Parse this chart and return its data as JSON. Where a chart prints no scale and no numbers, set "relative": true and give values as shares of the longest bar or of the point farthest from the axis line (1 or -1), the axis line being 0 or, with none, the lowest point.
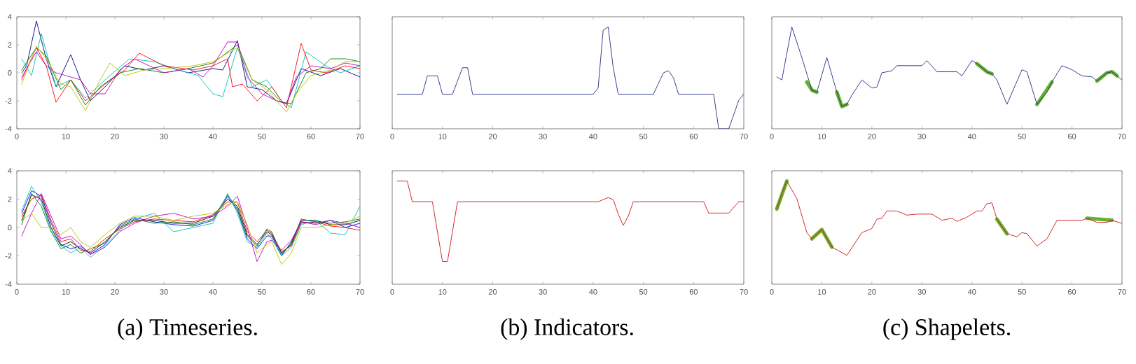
{
  "chart_data": [
    {
      "type": "line",
      "xlim": [
        0,
        70
      ],
      "xticks": [
        0,
        10,
        20,
        30,
        40,
        50,
        60,
        70
      ],
      "ylim": [
        -4,
        4
      ],
      "yticks": [
        -4,
        -2,
        0,
        2,
        4
      ],
      "series": [
        {
          "color": "#000080",
          "x": [
            1,
            2,
            4,
            6,
            8,
            11,
            13,
            15,
            18,
            22,
            26,
            30,
            35,
            40,
            42,
            45,
            47,
            50,
            53,
            55,
            58,
            62,
            66,
            70
          ],
          "values": [
            0,
            0.5,
            3.7,
            1,
            -1,
            1.3,
            -0.5,
            -2,
            -1,
            0.5,
            0.2,
            0.5,
            0,
            0.3,
            0.2,
            2.3,
            -1,
            -1.2,
            -2,
            -2.2,
            0.3,
            -0.2,
            0.3,
            -0.3
          ]
        },
        {
          "color": "#00bfbf",
          "x": [
            1,
            3,
            5,
            8,
            11,
            14,
            18,
            23,
            28,
            33,
            37,
            40,
            42,
            45,
            48,
            51,
            54,
            56,
            59,
            63,
            66,
            70
          ],
          "values": [
            1,
            -0.2,
            2.8,
            -1,
            -0.5,
            -1.8,
            -0.5,
            1,
            0.8,
            0.2,
            -0.2,
            -1.5,
            -1.7,
            1.8,
            -1,
            -0.5,
            -2,
            -2.5,
            1.5,
            0.5,
            0,
            0.5
          ]
        },
        {
          "color": "#ff0000",
          "x": [
            1,
            4,
            6,
            8,
            11,
            14,
            18,
            22,
            25,
            30,
            36,
            40,
            43,
            44,
            46,
            49,
            52,
            55,
            58,
            60,
            63,
            67,
            70
          ],
          "values": [
            -0.5,
            1.8,
            0.5,
            -2.1,
            -0.5,
            -2,
            -0.8,
            0.2,
            1.4,
            0.5,
            0.2,
            0.5,
            1,
            -1,
            -0.8,
            -2,
            -1,
            -2.5,
            2.1,
            0.2,
            0,
            0.5,
            0.3
          ]
        },
        {
          "color": "#008000",
          "x": [
            1,
            4,
            6,
            9,
            11,
            14,
            17,
            21,
            25,
            30,
            35,
            40,
            45,
            48,
            51,
            54,
            56,
            59,
            62,
            64,
            67,
            70
          ],
          "values": [
            0.2,
            1.8,
            1.2,
            -1.2,
            -0.5,
            -2.3,
            -1,
            0,
            0.3,
            0,
            0.3,
            0.7,
            2,
            -0.5,
            -1,
            -2.1,
            -2.2,
            0,
            0.3,
            1,
            1,
            0.8
          ]
        },
        {
          "color": "#bf00bf",
          "x": [
            1,
            4,
            6,
            8,
            11,
            13,
            15,
            18,
            21,
            24,
            30,
            35,
            38,
            40,
            43,
            45,
            47,
            50,
            53,
            55,
            57,
            60,
            64,
            67,
            70
          ],
          "values": [
            -0.3,
            1.5,
            0.5,
            0,
            -0.3,
            -0.5,
            -1.5,
            -1.5,
            0.2,
            1,
            0,
            0.3,
            -0.3,
            0.5,
            2.2,
            2.2,
            -0.3,
            -1.5,
            -2,
            -2.2,
            -0.3,
            0.5,
            0.3,
            0.7,
            0.5
          ]
        },
        {
          "color": "#bfbf00",
          "x": [
            1,
            4,
            6,
            9,
            11,
            14,
            17,
            19,
            22,
            26,
            30,
            36,
            40,
            45,
            48,
            51,
            55,
            57,
            60,
            64,
            67,
            70
          ],
          "values": [
            -0.8,
            1.9,
            1,
            -0.8,
            -1,
            -2.7,
            -0.5,
            0.7,
            -0.2,
            0.2,
            0.3,
            0.5,
            0.8,
            1.8,
            -0.5,
            -1.2,
            -2.8,
            -1.5,
            -0.2,
            0.2,
            0.8,
            0.8
          ]
        }
      ]
    },
    {
      "type": "line",
      "relative": true,
      "xlim": [
        0,
        70
      ],
      "xticks": [
        0,
        10,
        20,
        30,
        40,
        50,
        60,
        70
      ],
      "series": [
        {
          "color": "#1f2a80",
          "x": [
            1,
            6,
            7,
            9,
            10,
            12,
            14,
            15,
            16,
            40,
            41,
            42,
            43,
            44,
            45,
            52,
            54,
            55,
            56,
            57,
            64,
            65,
            67,
            69,
            70
          ],
          "values": [
            0.34,
            0.34,
            0.52,
            0.52,
            0.34,
            0.34,
            0.6,
            0.6,
            0.34,
            0.34,
            0.4,
            0.97,
            1,
            0.6,
            0.34,
            0.34,
            0.55,
            0.57,
            0.5,
            0.34,
            0.34,
            0,
            0,
            0.28,
            0.34
          ]
        }
      ]
    },
    {
      "type": "line",
      "relative": true,
      "xlim": [
        0,
        70
      ],
      "xticks": [
        0,
        10,
        20,
        30,
        40,
        50,
        60,
        70
      ],
      "x": [
        1,
        2,
        4,
        6,
        8,
        9,
        11,
        13,
        14,
        15,
        16,
        18,
        20,
        21,
        22,
        24,
        25,
        30,
        31,
        33,
        37,
        38,
        40,
        41,
        43,
        44,
        45,
        47,
        50,
        51,
        53,
        55,
        56,
        58,
        60,
        62,
        64,
        65,
        67,
        68,
        70
      ],
      "series": [
        {
          "color": "#1f2a80",
          "values": [
            0.51,
            0.48,
            1,
            0.7,
            0.38,
            0.36,
            0.7,
            0.36,
            0.22,
            0.24,
            0.33,
            0.48,
            0.4,
            0.41,
            0.55,
            0.57,
            0.62,
            0.62,
            0.67,
            0.56,
            0.56,
            0.52,
            0.67,
            0.64,
            0.56,
            0.54,
            0.48,
            0.24,
            0.58,
            0.56,
            0.24,
            0.36,
            0.46,
            0.62,
            0.58,
            0.52,
            0.51,
            0.47,
            0.55,
            0.56,
            0.48
          ]
        },
        {
          "color": "#66b22e",
          "x": [
            7,
            8,
            9,
            11,
            13,
            14,
            15,
            20,
            41,
            43,
            44,
            50,
            53,
            56,
            60,
            65,
            67,
            68,
            69
          ],
          "values": [
            0.46,
            0.38,
            0.36,
            null,
            0.36,
            0.22,
            0.24,
            null,
            0.64,
            0.56,
            0.54,
            null,
            0.24,
            0.46,
            null,
            0.47,
            0.55,
            0.56,
            0.52
          ]
        }
      ]
    },
    {
      "type": "line",
      "xlim": [
        0,
        70
      ],
      "xticks": [
        0,
        10,
        20,
        30,
        40,
        50,
        60,
        70
      ],
      "ylim": [
        -4,
        4
      ],
      "yticks": [
        -4,
        -2,
        0,
        2,
        4
      ],
      "annotations": [
        "(a) Timeseries."
      ],
      "x": [
        1,
        3,
        5,
        7,
        9,
        11,
        13,
        15,
        18,
        21,
        24,
        28,
        32,
        36,
        40,
        43,
        45,
        47,
        49,
        51,
        52,
        54,
        56,
        58,
        61,
        64,
        67,
        70
      ],
      "series": [
        {
          "color": "#000000",
          "values": [
            0.5,
            2.3,
            2,
            0,
            -1.3,
            -1,
            -1.5,
            -1.8,
            -1,
            0,
            0.5,
            0.5,
            0.3,
            0.3,
            0.8,
            2,
            1.5,
            -0.5,
            -1.2,
            -0.3,
            -0.5,
            -1.8,
            -1.2,
            0.5,
            0.5,
            0.2,
            0.2,
            0.5
          ]
        },
        {
          "color": "#0000ff",
          "values": [
            1,
            2.6,
            2.2,
            0.3,
            -1.2,
            -1.5,
            -1.3,
            -1.9,
            -1.2,
            0.2,
            0.7,
            0.4,
            0.2,
            0.1,
            0.5,
            2.2,
            1.2,
            -0.8,
            -1.5,
            -0.6,
            -0.6,
            -2,
            -1,
            0.4,
            0.3,
            0.5,
            0,
            0.3
          ]
        },
        {
          "color": "#ff0000",
          "values": [
            0.8,
            2,
            2.3,
            0.5,
            -1,
            -0.8,
            -1.6,
            -1.7,
            -0.8,
            -0.1,
            0.4,
            0.6,
            0.5,
            0.4,
            0.9,
            1.8,
            1.8,
            -0.3,
            -1,
            -0.2,
            -0.4,
            -1.7,
            -1.3,
            0.3,
            0.4,
            0.1,
            0,
            -0.2
          ]
        },
        {
          "color": "#008000",
          "values": [
            0.2,
            2.4,
            1.5,
            -0.3,
            -1.5,
            -1.2,
            -1.8,
            -1.5,
            -1.1,
            0.1,
            0.6,
            0.3,
            0.4,
            0.2,
            0.6,
            2.3,
            1.3,
            -0.6,
            -1.3,
            -0.1,
            -0.3,
            -1.9,
            -1.1,
            0.6,
            0.4,
            0.3,
            0.4,
            0.6
          ]
        },
        {
          "color": "#00bfbf",
          "values": [
            1.2,
            2.9,
            1.8,
            -0.2,
            -1.3,
            -1.8,
            -1.4,
            -2.1,
            -1.3,
            -0.2,
            0.6,
            1,
            -0.3,
            0,
            0.3,
            2.4,
            1,
            -1,
            -1.4,
            -0.4,
            -0.8,
            -2,
            -1.4,
            0.2,
            0.5,
            -0.4,
            -0.5,
            1.5
          ]
        },
        {
          "color": "#bf00bf",
          "values": [
            -0.6,
            1,
            2.4,
            0.8,
            -0.8,
            -0.6,
            -1.2,
            -1.9,
            -1.4,
            -0.3,
            0.3,
            0.8,
            1,
            0.6,
            0.8,
            1.5,
            2.2,
            0,
            -2.4,
            -1,
            -0.9,
            -1.6,
            -0.9,
            0.4,
            0.2,
            0.5,
            0.3,
            0
          ]
        },
        {
          "color": "#bfbf00",
          "values": [
            0.5,
            1,
            0,
            0,
            -0.5,
            0,
            -1,
            -1.4,
            -0.5,
            0.3,
            0.8,
            0.8,
            0.5,
            0.8,
            1,
            1.6,
            1.8,
            0.2,
            -1.8,
            -1.2,
            -1,
            -2.6,
            -1.8,
            0,
            0,
            0.2,
            0.3,
            0.8
          ]
        }
      ]
    },
    {
      "type": "line",
      "relative": true,
      "xlim": [
        0,
        70
      ],
      "xticks": [
        0,
        10,
        20,
        30,
        40,
        50,
        60,
        70
      ],
      "annotations": [
        "(b) Indicators."
      ],
      "series": [
        {
          "color": "#d01010",
          "x": [
            1,
            3,
            4,
            8,
            10,
            11,
            13,
            41,
            43,
            44,
            45,
            46,
            47,
            48,
            62,
            63,
            67,
            69,
            70
          ],
          "values": [
            1,
            1,
            0.8,
            0.8,
            0.22,
            0.22,
            0.8,
            0.8,
            0.84,
            0.82,
            0.68,
            0.57,
            0.66,
            0.8,
            0.8,
            0.69,
            0.69,
            0.8,
            0.8
          ]
        }
      ]
    },
    {
      "type": "line",
      "relative": true,
      "xlim": [
        0,
        70
      ],
      "xticks": [
        0,
        10,
        20,
        30,
        40,
        50,
        60,
        70
      ],
      "annotations": [
        "(c) Shapelets."
      ],
      "x": [
        1,
        2,
        3,
        5,
        7,
        8,
        10,
        12,
        15,
        18,
        20,
        21,
        22,
        23,
        25,
        27,
        29,
        32,
        34,
        36,
        37,
        39,
        41,
        42,
        43,
        44,
        45,
        47,
        49,
        50,
        51,
        53,
        55,
        57,
        62,
        63,
        65,
        67,
        68,
        70
      ],
      "series": [
        {
          "color": "#d01010",
          "values": [
            0.73,
            0.88,
            1,
            0.83,
            0.5,
            0.44,
            0.53,
            0.36,
            0.28,
            0.5,
            0.54,
            0.63,
            0.64,
            0.71,
            0.71,
            0.67,
            0.68,
            0.68,
            0.62,
            0.64,
            0.61,
            0.65,
            0.71,
            0.71,
            0.78,
            0.79,
            0.63,
            0.49,
            0.46,
            0.5,
            0.49,
            0.37,
            0.44,
            0.62,
            0.62,
            0.64,
            0.6,
            0.6,
            0.62,
            0.59
          ]
        },
        {
          "color": "#66b22e",
          "x": [
            1,
            3,
            5,
            8,
            10,
            12,
            20,
            45,
            47,
            55,
            63,
            68
          ],
          "values": [
            0.73,
            1,
            null,
            0.44,
            0.53,
            0.36,
            null,
            0.63,
            0.49,
            null,
            0.64,
            0.62
          ]
        }
      ]
    }
  ]
}
